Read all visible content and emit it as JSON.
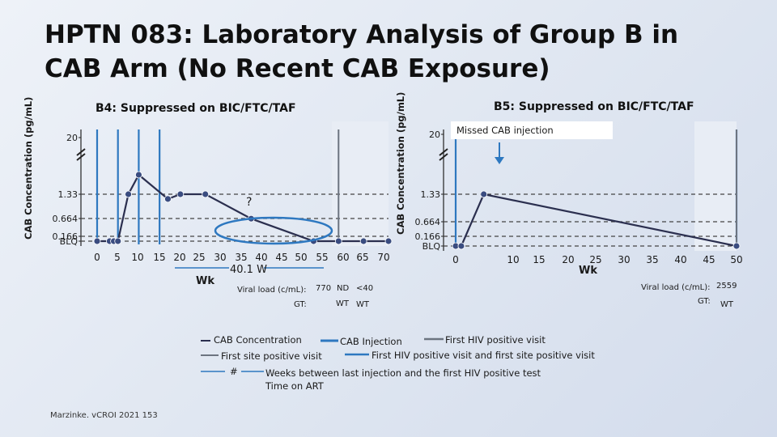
{
  "title": "HPTN 083: Laboratory Analysis of Group B in CAB Arm (No Recent CAB Exposure)",
  "citation": "Marzinke. vCROI 2021 153",
  "colors": {
    "line": "#2b2f4f",
    "dot": "#3a4c80",
    "injection": "#2e78c0",
    "first_positive": "#6c7480",
    "first_site": "#2e78c0",
    "ellipse": "#2e78c0"
  },
  "chart_data": [
    {
      "type": "line",
      "title": "B4: Suppressed on BIC/FTC/TAF",
      "ylabel": "CAB Concentration (pg/mL)",
      "xlabel": "Wk",
      "y_ticks": [
        "BLQ",
        "0.166",
        "0.664",
        "1.33",
        "20"
      ],
      "x_ticks": [
        "0",
        "5",
        "10",
        "15",
        "20",
        "25",
        "30",
        "35",
        "40",
        "45",
        "50",
        "55",
        "60",
        "65",
        "70"
      ],
      "injections": [
        0,
        5,
        10,
        15
      ],
      "first_site_positive": 58,
      "first_hiv_positive": 58,
      "series": [
        {
          "points": [
            [
              0,
              "BLQ"
            ],
            [
              3,
              "BLQ"
            ],
            [
              4,
              "BLQ"
            ],
            [
              5,
              "BLQ"
            ],
            [
              7.5,
              1.33
            ],
            [
              10,
              2.4
            ],
            [
              17,
              1.2
            ],
            [
              20,
              1.33
            ],
            [
              26,
              1.33
            ],
            [
              37,
              0.66
            ],
            [
              52,
              "BLQ"
            ],
            [
              58,
              "BLQ"
            ],
            [
              64,
              "BLQ"
            ],
            [
              70,
              "BLQ"
            ]
          ]
        }
      ],
      "annotations": [
        {
          "text": "?",
          "x": 37,
          "y": 0.9
        },
        {
          "text": "40.1 W",
          "x": 38
        }
      ],
      "viral_load": {
        "label": "Viral load (c/mL):",
        "values": [
          "770",
          "ND",
          "<40"
        ]
      },
      "genotype": {
        "label": "GT:",
        "values": [
          "WT",
          "WT"
        ]
      }
    },
    {
      "type": "line",
      "title": "B5: Suppressed on BIC/FTC/TAF",
      "ylabel": "CAB Concentration (pg/mL)",
      "xlabel": "Wk",
      "y_ticks": [
        "BLQ",
        "0.166",
        "0.664",
        "1.33",
        "20"
      ],
      "x_ticks": [
        "0",
        "10",
        "15",
        "20",
        "25",
        "30",
        "35",
        "40",
        "45",
        "50"
      ],
      "injections": [
        0,
        50
      ],
      "first_hiv_positive": 50,
      "missed_injection_label": "Missed CAB injection",
      "series": [
        {
          "points": [
            [
              0,
              "BLQ"
            ],
            [
              1,
              "BLQ"
            ],
            [
              5,
              1.33
            ],
            [
              50,
              "BLQ"
            ]
          ]
        }
      ],
      "viral_load": {
        "label": "Viral load (c/mL):",
        "values": [
          "2559"
        ]
      },
      "genotype": {
        "label": "GT:",
        "values": [
          "WT"
        ]
      }
    }
  ],
  "legend": {
    "cab_concentration": "CAB Concentration",
    "cab_injection": "CAB Injection",
    "first_hiv_positive": "First HIV positive visit",
    "first_site_positive": "First site positive visit",
    "both": "First HIV positive visit and first site positive visit",
    "hash_symbol": "#",
    "weeks_between": "Weeks between last injection and the first HIV positive test",
    "time_on_art": "Time on ART"
  }
}
